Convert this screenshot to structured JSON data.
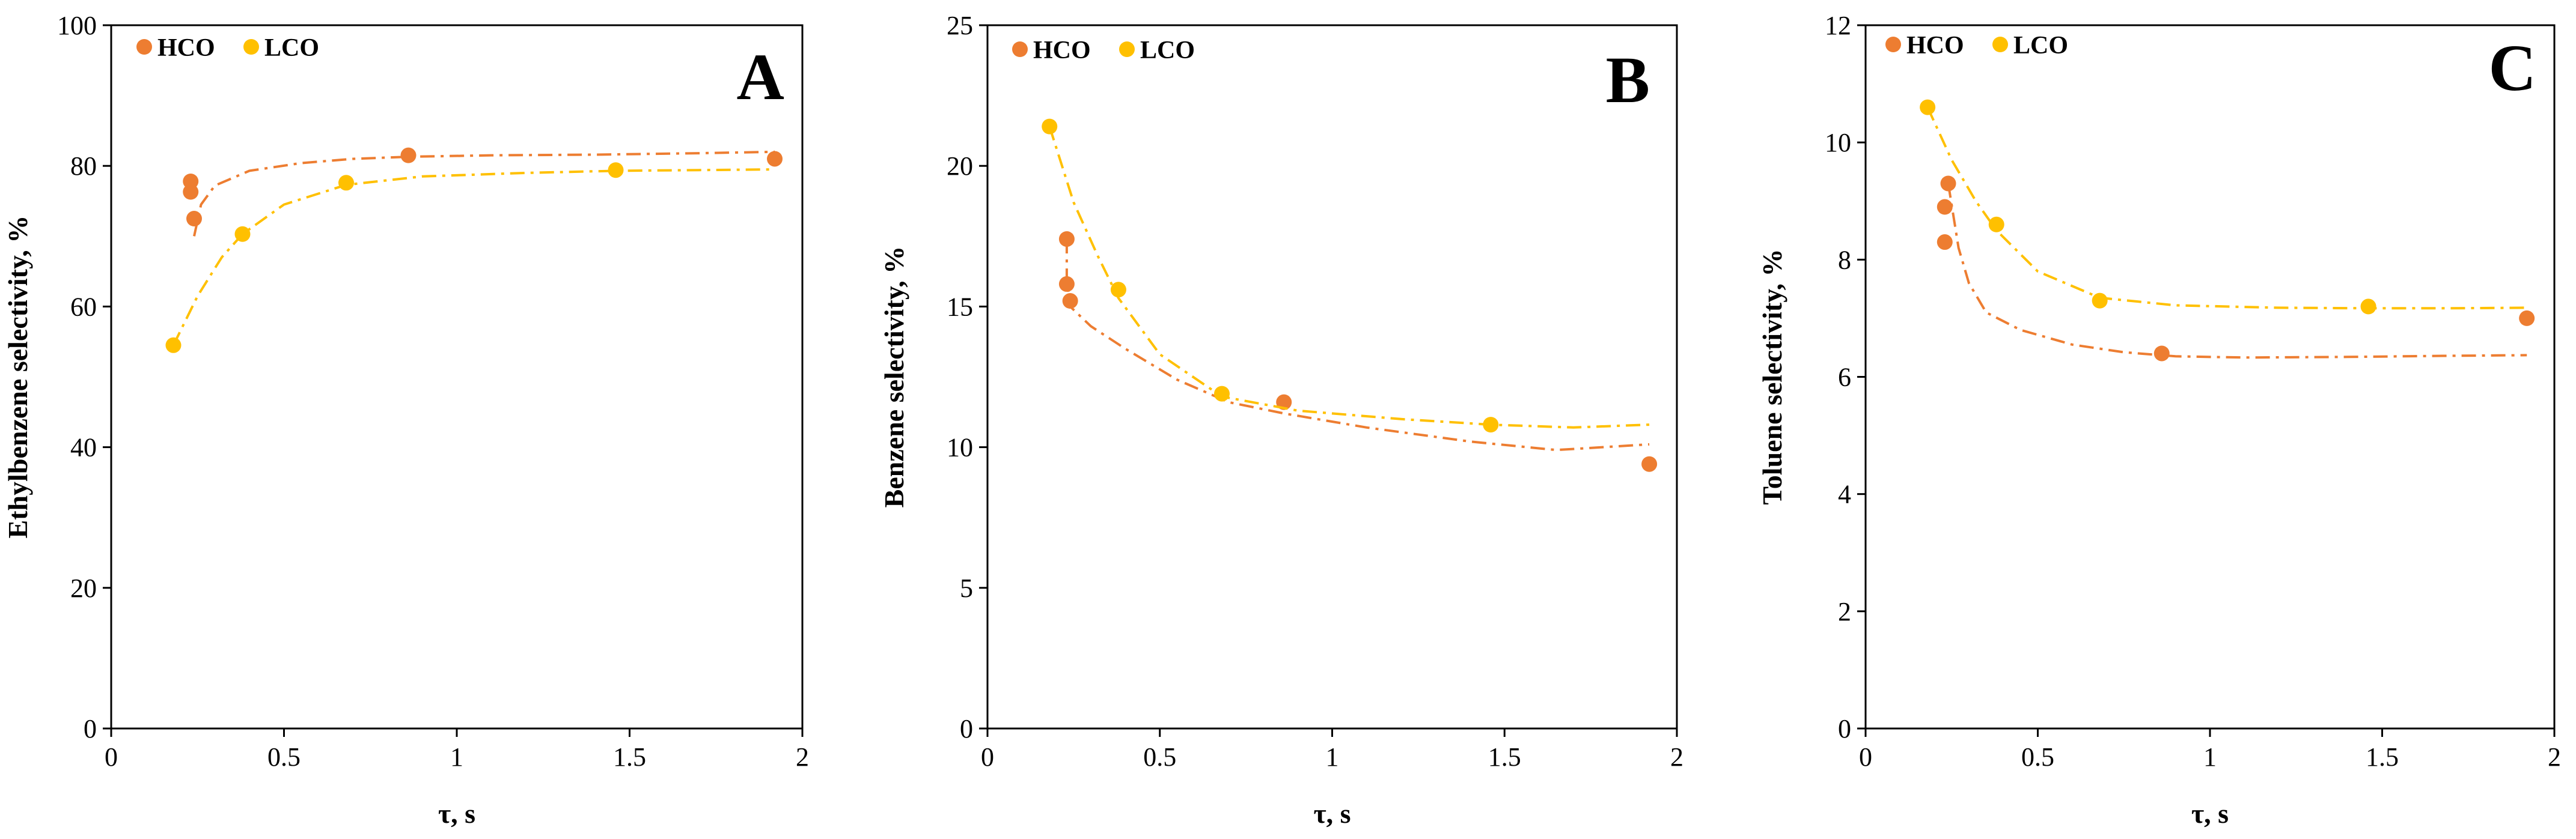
{
  "colors": {
    "hco": "#ED7D31",
    "lco": "#FFC000",
    "axis": "#000000"
  },
  "legend": {
    "hco_label": "HCO",
    "lco_label": "LCO"
  },
  "chart_data": [
    {
      "type": "scatter",
      "panel_label": "A",
      "xlabel": "τ, s",
      "ylabel": "Ethylbenzene selectivity, %",
      "xlim": [
        0,
        2
      ],
      "ylim": [
        0,
        100
      ],
      "xticks": [
        0,
        0.5,
        1,
        1.5,
        2
      ],
      "xtick_labels": [
        "0",
        "0.5",
        "1",
        "1.5",
        "2"
      ],
      "yticks": [
        0,
        20,
        40,
        60,
        80,
        100
      ],
      "ytick_labels": [
        "0",
        "20",
        "40",
        "60",
        "80",
        "100"
      ],
      "grid": false,
      "series": [
        {
          "name": "HCO",
          "color": "#ED7D31",
          "x": [
            0.23,
            0.23,
            0.24,
            0.86,
            1.92
          ],
          "y": [
            77.8,
            76.3,
            72.5,
            81.5,
            81.0
          ],
          "trend": {
            "x": [
              0.24,
              0.26,
              0.3,
              0.4,
              0.55,
              0.7,
              0.86,
              1.1,
              1.4,
              1.7,
              1.92
            ],
            "y": [
              70.0,
              74.5,
              77.2,
              79.3,
              80.4,
              81.0,
              81.3,
              81.5,
              81.6,
              81.8,
              82.0
            ]
          }
        },
        {
          "name": "LCO",
          "color": "#FFC000",
          "x": [
            0.18,
            0.38,
            0.68,
            1.46
          ],
          "y": [
            54.5,
            70.3,
            77.6,
            79.4
          ],
          "trend": {
            "x": [
              0.18,
              0.25,
              0.32,
              0.38,
              0.5,
              0.68,
              0.9,
              1.2,
              1.46,
              1.7,
              1.92
            ],
            "y": [
              54.5,
              61.5,
              67.0,
              70.3,
              74.5,
              77.3,
              78.5,
              79.0,
              79.3,
              79.4,
              79.5
            ]
          }
        }
      ]
    },
    {
      "type": "scatter",
      "panel_label": "B",
      "xlabel": "τ, s",
      "ylabel": "Benzene selectivity, %",
      "xlim": [
        0,
        2
      ],
      "ylim": [
        0,
        25
      ],
      "xticks": [
        0,
        0.5,
        1,
        1.5,
        2
      ],
      "xtick_labels": [
        "0",
        "0.5",
        "1",
        "1.5",
        "2"
      ],
      "yticks": [
        0,
        5,
        10,
        15,
        20,
        25
      ],
      "ytick_labels": [
        "0",
        "5",
        "10",
        "15",
        "20",
        "25"
      ],
      "grid": false,
      "series": [
        {
          "name": "HCO",
          "color": "#ED7D31",
          "x": [
            0.23,
            0.23,
            0.24,
            0.86,
            1.92
          ],
          "y": [
            17.4,
            15.8,
            15.2,
            11.6,
            9.4
          ],
          "trend": {
            "x": [
              0.23,
              0.23,
              0.24,
              0.3,
              0.4,
              0.55,
              0.7,
              0.86,
              1.1,
              1.4,
              1.65,
              1.92
            ],
            "y": [
              17.4,
              16.0,
              15.0,
              14.3,
              13.5,
              12.4,
              11.6,
              11.2,
              10.7,
              10.2,
              9.9,
              10.1
            ]
          }
        },
        {
          "name": "LCO",
          "color": "#FFC000",
          "x": [
            0.18,
            0.38,
            0.68,
            1.46
          ],
          "y": [
            21.4,
            15.6,
            11.9,
            10.8
          ],
          "trend": {
            "x": [
              0.18,
              0.25,
              0.32,
              0.38,
              0.5,
              0.68,
              0.9,
              1.2,
              1.46,
              1.7,
              1.92
            ],
            "y": [
              21.4,
              18.7,
              16.8,
              15.3,
              13.3,
              11.8,
              11.3,
              11.0,
              10.8,
              10.7,
              10.8
            ]
          }
        }
      ]
    },
    {
      "type": "scatter",
      "panel_label": "C",
      "xlabel": "τ, s",
      "ylabel": "Toluene selectivity, %",
      "xlim": [
        0,
        2
      ],
      "ylim": [
        0,
        12
      ],
      "xticks": [
        0,
        0.5,
        1,
        1.5,
        2
      ],
      "xtick_labels": [
        "0",
        "0.5",
        "1",
        "1.5",
        "2"
      ],
      "yticks": [
        0,
        2,
        4,
        6,
        8,
        10,
        12
      ],
      "ytick_labels": [
        "0",
        "2",
        "4",
        "6",
        "8",
        "10",
        "12"
      ],
      "grid": false,
      "series": [
        {
          "name": "HCO",
          "color": "#ED7D31",
          "x": [
            0.23,
            0.23,
            0.24,
            0.86,
            1.92
          ],
          "y": [
            8.9,
            8.3,
            9.3,
            6.4,
            7.0
          ],
          "trend": {
            "x": [
              0.24,
              0.27,
              0.3,
              0.35,
              0.45,
              0.6,
              0.75,
              0.9,
              1.1,
              1.4,
              1.7,
              1.92
            ],
            "y": [
              9.3,
              8.2,
              7.6,
              7.1,
              6.8,
              6.55,
              6.42,
              6.35,
              6.33,
              6.34,
              6.36,
              6.37
            ]
          }
        },
        {
          "name": "LCO",
          "color": "#FFC000",
          "x": [
            0.18,
            0.38,
            0.68,
            1.46
          ],
          "y": [
            10.6,
            8.6,
            7.3,
            7.2
          ],
          "trend": {
            "x": [
              0.18,
              0.25,
              0.32,
              0.38,
              0.5,
              0.68,
              0.9,
              1.2,
              1.46,
              1.7,
              1.92
            ],
            "y": [
              10.6,
              9.7,
              9.0,
              8.5,
              7.8,
              7.35,
              7.22,
              7.18,
              7.17,
              7.17,
              7.18
            ]
          }
        }
      ]
    }
  ]
}
